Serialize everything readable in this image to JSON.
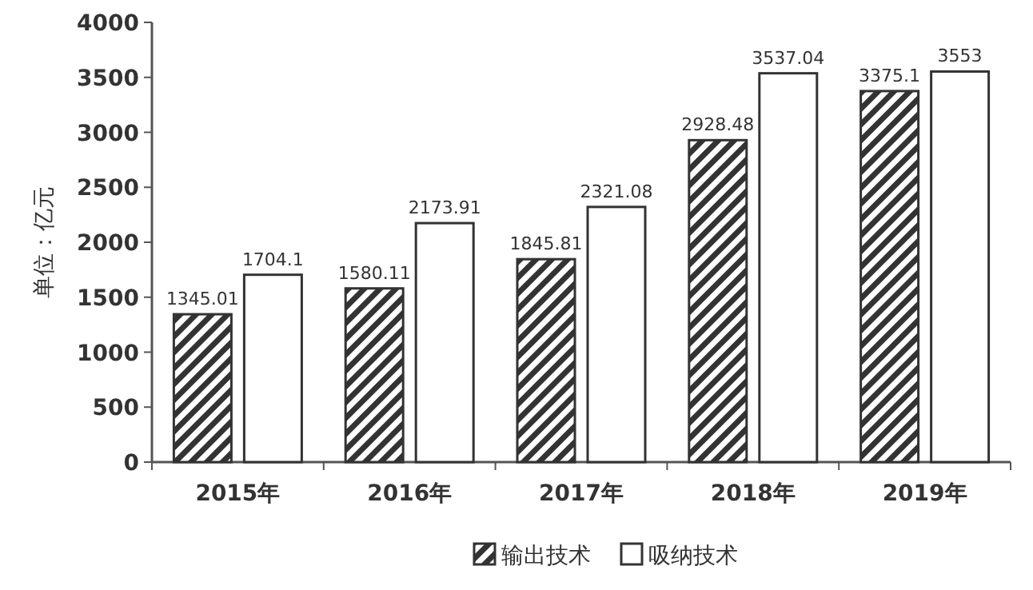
{
  "chart_data": {
    "type": "bar",
    "ylabel": "单位：亿元",
    "categories": [
      "2015年",
      "2016年",
      "2017年",
      "2018年",
      "2019年"
    ],
    "series": [
      {
        "name": "输出技术",
        "color": "#333333",
        "values": [
          1345.01,
          1580.11,
          1845.81,
          2928.48,
          3375.1
        ]
      },
      {
        "name": "吸纳技术",
        "color": "#ffffff",
        "values": [
          1704.1,
          2173.91,
          2321.08,
          3537.04,
          3553
        ]
      }
    ],
    "ylim": [
      0,
      4000
    ],
    "yticks": [
      0,
      500,
      1000,
      1500,
      2000,
      2500,
      3000,
      3500,
      4000
    ],
    "data_labels": true,
    "legend": "bottom",
    "grid": false
  }
}
